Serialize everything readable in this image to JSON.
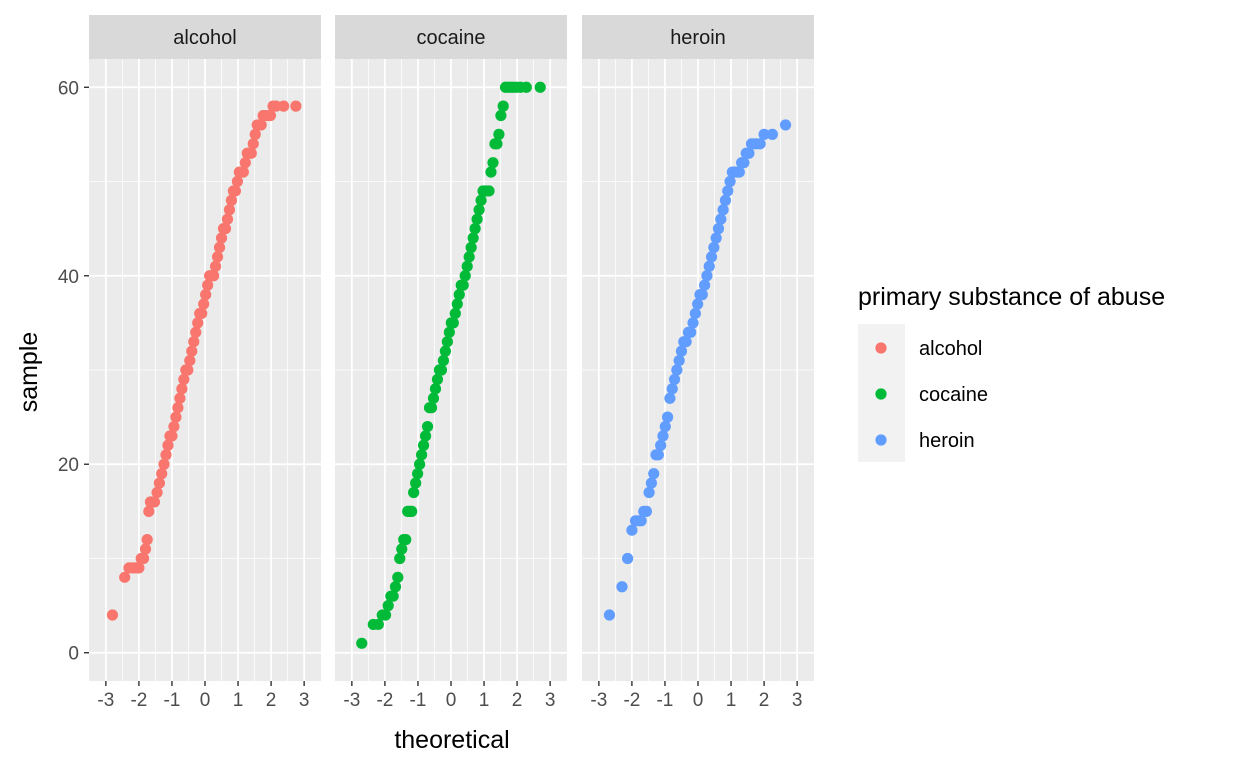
{
  "chart_data": {
    "type": "scatter",
    "subtype": "qq-plot",
    "facet_by": "primary substance of abuse",
    "xlabel": "theoretical",
    "ylabel": "sample",
    "xlim": [
      -3,
      3
    ],
    "ylim": [
      0,
      60
    ],
    "x_ticks": [
      -3,
      -2,
      -1,
      0,
      1,
      2,
      3
    ],
    "x_tick_labels": [
      "-3",
      "-2",
      "-1",
      "0",
      "1",
      "2",
      "3"
    ],
    "y_ticks": [
      0,
      20,
      40,
      60
    ],
    "y_tick_labels": [
      "0",
      "20",
      "40",
      "60"
    ],
    "grid": true,
    "legend": {
      "title": "primary substance of abuse",
      "position": "right",
      "entries": [
        "alcohol",
        "cocaine",
        "heroin"
      ]
    },
    "series": [
      {
        "name": "alcohol",
        "color": "#F8766D",
        "x": [
          -2.8,
          -2.43,
          -2.3,
          -2.18,
          -2.08,
          -2.0,
          -1.93,
          -1.86,
          -1.8,
          -1.75,
          -1.7,
          -1.65,
          -1.6,
          -1.53,
          -1.45,
          -1.38,
          -1.31,
          -1.24,
          -1.18,
          -1.12,
          -1.06,
          -1.0,
          -0.94,
          -0.88,
          -0.82,
          -0.76,
          -0.7,
          -0.64,
          -0.58,
          -0.52,
          -0.46,
          -0.4,
          -0.34,
          -0.28,
          -0.22,
          -0.16,
          -0.1,
          -0.04,
          0.02,
          0.08,
          0.14,
          0.2,
          0.26,
          0.32,
          0.38,
          0.44,
          0.5,
          0.56,
          0.62,
          0.68,
          0.74,
          0.8,
          0.86,
          0.92,
          0.98,
          1.04,
          1.1,
          1.16,
          1.22,
          1.28,
          1.34,
          1.4,
          1.46,
          1.52,
          1.58,
          1.64,
          1.7,
          1.76,
          1.82,
          1.9,
          1.98,
          2.06,
          2.15,
          2.38,
          2.75
        ],
        "values": [
          4,
          8,
          9,
          9,
          9,
          9,
          10,
          10,
          11,
          12,
          15,
          16,
          16,
          16,
          17,
          18,
          19,
          20,
          21,
          22,
          23,
          23,
          24,
          25,
          26,
          27,
          28,
          29,
          30,
          30,
          31,
          32,
          33,
          34,
          35,
          36,
          36,
          37,
          38,
          39,
          40,
          40,
          40,
          41,
          42,
          43,
          44,
          45,
          45,
          46,
          47,
          48,
          49,
          49,
          50,
          51,
          51,
          51,
          52,
          53,
          53,
          53,
          54,
          55,
          56,
          56,
          56,
          57,
          57,
          57,
          57,
          58,
          58,
          58,
          58
        ]
      },
      {
        "name": "cocaine",
        "color": "#00BA38",
        "x": [
          -2.7,
          -2.35,
          -2.2,
          -2.08,
          -1.98,
          -1.9,
          -1.82,
          -1.75,
          -1.68,
          -1.61,
          -1.55,
          -1.49,
          -1.43,
          -1.37,
          -1.31,
          -1.25,
          -1.19,
          -1.13,
          -1.07,
          -1.01,
          -0.95,
          -0.89,
          -0.83,
          -0.77,
          -0.71,
          -0.65,
          -0.59,
          -0.53,
          -0.47,
          -0.41,
          -0.35,
          -0.29,
          -0.23,
          -0.17,
          -0.11,
          -0.05,
          0.01,
          0.07,
          0.13,
          0.19,
          0.25,
          0.31,
          0.37,
          0.43,
          0.49,
          0.55,
          0.61,
          0.67,
          0.73,
          0.79,
          0.85,
          0.91,
          0.97,
          1.03,
          1.09,
          1.15,
          1.21,
          1.27,
          1.33,
          1.39,
          1.45,
          1.51,
          1.58,
          1.65,
          1.72,
          1.8,
          1.88,
          1.98,
          2.1,
          2.28,
          2.7
        ],
        "values": [
          1,
          3,
          3,
          4,
          4,
          5,
          6,
          6,
          7,
          8,
          10,
          11,
          12,
          12,
          15,
          15,
          15,
          17,
          18,
          19,
          20,
          21,
          22,
          23,
          24,
          26,
          26,
          27,
          28,
          29,
          30,
          30,
          31,
          32,
          33,
          34,
          35,
          35,
          36,
          37,
          38,
          39,
          39,
          40,
          41,
          42,
          43,
          44,
          45,
          46,
          47,
          48,
          49,
          49,
          49,
          49,
          51,
          52,
          54,
          54,
          55,
          57,
          58,
          60,
          60,
          60,
          60,
          60,
          60,
          60,
          60
        ]
      },
      {
        "name": "heroin",
        "color": "#619CFF",
        "x": [
          -2.68,
          -2.3,
          -2.13,
          -2.0,
          -1.89,
          -1.8,
          -1.72,
          -1.64,
          -1.56,
          -1.48,
          -1.41,
          -1.34,
          -1.27,
          -1.2,
          -1.13,
          -1.06,
          -0.99,
          -0.92,
          -0.85,
          -0.78,
          -0.71,
          -0.64,
          -0.57,
          -0.5,
          -0.43,
          -0.36,
          -0.29,
          -0.22,
          -0.15,
          -0.08,
          -0.01,
          0.06,
          0.13,
          0.2,
          0.27,
          0.34,
          0.41,
          0.48,
          0.55,
          0.62,
          0.69,
          0.76,
          0.83,
          0.9,
          0.97,
          1.04,
          1.11,
          1.18,
          1.25,
          1.32,
          1.39,
          1.46,
          1.54,
          1.62,
          1.7,
          1.78,
          1.88,
          2.0,
          2.25,
          2.65
        ],
        "values": [
          4,
          7,
          10,
          13,
          14,
          14,
          14,
          15,
          15,
          17,
          18,
          19,
          21,
          21,
          22,
          23,
          24,
          25,
          27,
          28,
          29,
          30,
          31,
          32,
          33,
          33,
          34,
          34,
          35,
          36,
          37,
          38,
          38,
          39,
          40,
          41,
          42,
          43,
          44,
          45,
          46,
          47,
          48,
          49,
          50,
          51,
          51,
          51,
          51,
          52,
          52,
          53,
          53,
          54,
          54,
          54,
          54,
          55,
          55,
          56
        ]
      }
    ]
  }
}
